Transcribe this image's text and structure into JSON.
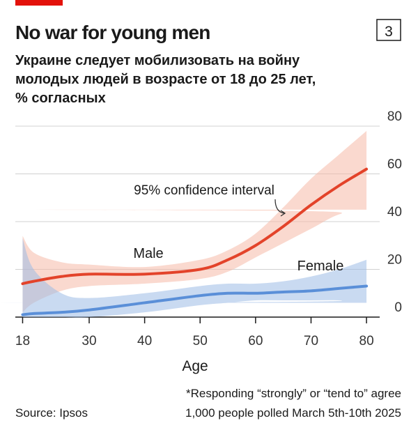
{
  "chart_data": {
    "type": "line",
    "title": "No war for young men",
    "chart_number": "3",
    "subtitle": [
      "Украине следует мобилизовать на войну",
      "молодых людей в возрасте от 18 до 25 лет,",
      "% согласных"
    ],
    "xlabel": "Age",
    "annotation": "95% confidence interval",
    "footnote": [
      "*Responding “strongly” or “tend to” agree",
      "1,000 people polled March 5th-10th 2025"
    ],
    "source": "Source: Ipsos",
    "x": [
      18,
      20,
      25,
      30,
      40,
      50,
      55,
      60,
      65,
      70,
      75,
      80
    ],
    "series": [
      {
        "name": "Male",
        "color": "#e3432a",
        "band_color": "#f6b9a8",
        "values": [
          14,
          15,
          17,
          18,
          18,
          20,
          24,
          30,
          38,
          47,
          55,
          62
        ],
        "upper": [
          34,
          27,
          23,
          22,
          21,
          24,
          28,
          35,
          46,
          58,
          68,
          78
        ],
        "lower": [
          2,
          6,
          11,
          13,
          14,
          16,
          19,
          25,
          31,
          37,
          43,
          45
        ]
      },
      {
        "name": "Female",
        "color": "#5a8fd8",
        "band_color": "#9dbbe6",
        "values": [
          1,
          1.5,
          2,
          3,
          6,
          9,
          10,
          10,
          10.5,
          11,
          12,
          13
        ],
        "upper": [
          33,
          20,
          10,
          8,
          10,
          13,
          14,
          14,
          15,
          17,
          20,
          24
        ],
        "lower": [
          0,
          0,
          0,
          0,
          2,
          5,
          6,
          7,
          7,
          7,
          7,
          6
        ]
      }
    ],
    "xlim": [
      17,
      82
    ],
    "xticks": [
      18,
      30,
      40,
      50,
      60,
      70,
      80
    ],
    "ylim": [
      0,
      80
    ],
    "yticks": [
      0,
      20,
      40,
      60,
      80
    ],
    "grid": true
  }
}
